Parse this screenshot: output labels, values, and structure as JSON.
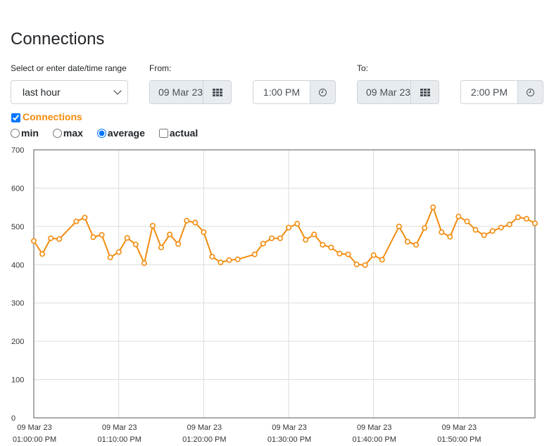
{
  "page": {
    "title": "Connections"
  },
  "range": {
    "label": "Select or enter date/time range",
    "selected": "last hour"
  },
  "from": {
    "label": "From:",
    "date": "09 Mar 23",
    "time": "1:00 PM"
  },
  "to": {
    "label": "To:",
    "date": "09 Mar 23",
    "time": "2:00 PM"
  },
  "series_toggle": {
    "label": "Connections",
    "checked": true
  },
  "modes": [
    {
      "label": "min",
      "checked": false
    },
    {
      "label": "max",
      "checked": false
    },
    {
      "label": "average",
      "checked": true
    },
    {
      "label": "actual",
      "checked": false
    }
  ],
  "colors": {
    "series": "#f28c0f",
    "grid": "#dcdcdc",
    "axis": "#555555"
  },
  "icons": {
    "date_button": "calendar-grid-icon",
    "time_button": "clock-icon"
  },
  "chart_data": {
    "type": "line",
    "title": "",
    "xlabel": "",
    "ylabel": "",
    "ylim": [
      0,
      700
    ],
    "xlim": [
      0,
      59
    ],
    "grid": true,
    "yticks": [
      0,
      100,
      200,
      300,
      400,
      500,
      600,
      700
    ],
    "xtick_labels": [
      {
        "x": 0,
        "date": "09 Mar 23",
        "time": "01:00:00 PM"
      },
      {
        "x": 10,
        "date": "09 Mar 23",
        "time": "01:10:00 PM"
      },
      {
        "x": 20,
        "date": "09 Mar 23",
        "time": "01:20:00 PM"
      },
      {
        "x": 30,
        "date": "09 Mar 23",
        "time": "01:30:00 PM"
      },
      {
        "x": 40,
        "date": "09 Mar 23",
        "time": "01:40:00 PM"
      },
      {
        "x": 50,
        "date": "09 Mar 23",
        "time": "01:50:00 PM"
      }
    ],
    "series": [
      {
        "points": [
          [
            0,
            462
          ],
          [
            1,
            428
          ],
          [
            2,
            469
          ],
          [
            3,
            467
          ],
          [
            5,
            513
          ],
          [
            6,
            523
          ],
          [
            7,
            472
          ],
          [
            8,
            478
          ],
          [
            9,
            419
          ],
          [
            10,
            433
          ],
          [
            11,
            470
          ],
          [
            12,
            453
          ],
          [
            13,
            404
          ],
          [
            14,
            502
          ],
          [
            15,
            445
          ],
          [
            16,
            479
          ],
          [
            17,
            454
          ],
          [
            18,
            515
          ],
          [
            19,
            510
          ],
          [
            20,
            485
          ],
          [
            21,
            421
          ],
          [
            22,
            406
          ],
          [
            23,
            412
          ],
          [
            24,
            414
          ],
          [
            26,
            427
          ],
          [
            27,
            455
          ],
          [
            28,
            469
          ],
          [
            29,
            469
          ],
          [
            30,
            497
          ],
          [
            31,
            507
          ],
          [
            32,
            465
          ],
          [
            33,
            479
          ],
          [
            34,
            452
          ],
          [
            35,
            445
          ],
          [
            36,
            429
          ],
          [
            37,
            427
          ],
          [
            38,
            401
          ],
          [
            39,
            399
          ],
          [
            40,
            425
          ],
          [
            41,
            413
          ],
          [
            43,
            500
          ],
          [
            44,
            460
          ],
          [
            45,
            452
          ],
          [
            46,
            496
          ],
          [
            47,
            550
          ],
          [
            48,
            485
          ],
          [
            49,
            473
          ],
          [
            50,
            526
          ],
          [
            51,
            513
          ],
          [
            52,
            491
          ],
          [
            53,
            477
          ],
          [
            54,
            488
          ],
          [
            55,
            497
          ],
          [
            56,
            505
          ],
          [
            57,
            524
          ],
          [
            58,
            520
          ],
          [
            59,
            508
          ]
        ]
      }
    ]
  }
}
